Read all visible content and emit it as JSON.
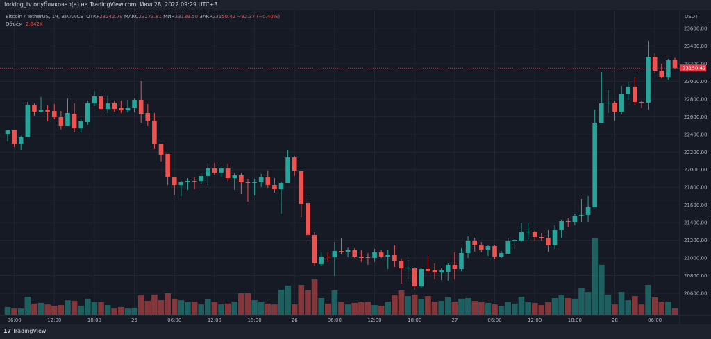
{
  "header": {
    "published": "forklog_tv опубликовал(а) на TradingView.com, Июл 28, 2022 09:29 UTC+3"
  },
  "legend": {
    "symbol": "Bitcoin / TetherUS, 1Ч, BINANCE",
    "open_label": "ОТКР",
    "open": "23242.79",
    "high_label": "МАКС",
    "high": "23273.81",
    "low_label": "МИН",
    "low": "23139.50",
    "close_label": "ЗАКР",
    "close": "23150.42",
    "change": "−92.37 (−0.40%)",
    "volume_label": "Объём",
    "volume": "2.842K"
  },
  "footer": {
    "logo_mark": "17",
    "brand": "TradingView"
  },
  "colors": {
    "up": "#26a69a",
    "down": "#ef5350",
    "background": "#161a25",
    "grid": "#222632",
    "price_label": "#f23645"
  },
  "chart_data": {
    "type": "candlestick",
    "interval": "1H",
    "currency": "USDT",
    "last_price": "23150.42",
    "ylim": [
      20500,
      23700
    ],
    "y_ticks": [
      "23600.00",
      "23400.00",
      "23200.00",
      "23000.00",
      "22800.00",
      "22600.00",
      "22400.00",
      "22200.00",
      "22000.00",
      "21800.00",
      "21600.00",
      "21400.00",
      "21200.00",
      "21000.00",
      "20800.00",
      "20600.00"
    ],
    "time_labels": [
      "06:00",
      "12:00",
      "18:00",
      "25",
      "06:00",
      "12:00",
      "18:00",
      "26",
      "06:00",
      "12:00",
      "18:00",
      "27",
      "06:00",
      "12:00",
      "18:00",
      "28",
      "06:00"
    ],
    "grid": true,
    "ohlc": [
      [
        22398,
        22453,
        22320,
        22446
      ],
      [
        22446,
        22446,
        22257,
        22296
      ],
      [
        22296,
        22383,
        22226,
        22367
      ],
      [
        22367,
        22768,
        22367,
        22736
      ],
      [
        22728,
        22752,
        22611,
        22658
      ],
      [
        22658,
        22823,
        22650,
        22681
      ],
      [
        22681,
        22728,
        22548,
        22658
      ],
      [
        22665,
        22744,
        22571,
        22595
      ],
      [
        22595,
        22665,
        22454,
        22493
      ],
      [
        22493,
        22807,
        22493,
        22642
      ],
      [
        22634,
        22752,
        22422,
        22469
      ],
      [
        22469,
        22579,
        22422,
        22548
      ],
      [
        22540,
        22783,
        22508,
        22752
      ],
      [
        22752,
        22893,
        22720,
        22830
      ],
      [
        22830,
        22862,
        22611,
        22689
      ],
      [
        22689,
        22838,
        22642,
        22752
      ],
      [
        22752,
        22783,
        22658,
        22689
      ],
      [
        22697,
        22783,
        22642,
        22673
      ],
      [
        22673,
        22791,
        22650,
        22697
      ],
      [
        22697,
        22807,
        22650,
        22791
      ],
      [
        22791,
        23003,
        22532,
        22634
      ],
      [
        22642,
        22744,
        22493,
        22556
      ],
      [
        22556,
        22642,
        22234,
        22289
      ],
      [
        22296,
        22296,
        22092,
        22171
      ],
      [
        22179,
        22179,
        21825,
        21919
      ],
      [
        21911,
        21911,
        21715,
        21825
      ],
      [
        21825,
        21872,
        21700,
        21857
      ],
      [
        21857,
        21904,
        21770,
        21872
      ],
      [
        21872,
        21911,
        21778,
        21865
      ],
      [
        21872,
        21967,
        21841,
        21927
      ],
      [
        21927,
        22077,
        21825,
        22014
      ],
      [
        22014,
        22077,
        21943,
        21967
      ],
      [
        21967,
        22045,
        21919,
        22014
      ],
      [
        22014,
        22069,
        21872,
        21904
      ],
      [
        21904,
        21959,
        21770,
        21935
      ],
      [
        21935,
        21967,
        21723,
        21857
      ],
      [
        21857,
        21896,
        21637,
        21849
      ],
      [
        21849,
        21896,
        21707,
        21857
      ],
      [
        21857,
        21951,
        21802,
        21919
      ],
      [
        21911,
        21990,
        21794,
        21825
      ],
      [
        21825,
        21904,
        21739,
        21778
      ],
      [
        21778,
        21865,
        21503,
        21849
      ],
      [
        21849,
        22226,
        21849,
        22139
      ],
      [
        22139,
        22155,
        21927,
        21990
      ],
      [
        21982,
        21982,
        21464,
        21613
      ],
      [
        21621,
        21715,
        21197,
        21260
      ],
      [
        21260,
        21291,
        20914,
        20938
      ],
      [
        20930,
        21064,
        20914,
        21016
      ],
      [
        21016,
        21064,
        20954,
        21009
      ],
      [
        21009,
        21181,
        20796,
        21079
      ],
      [
        21079,
        21220,
        21040,
        21071
      ],
      [
        21071,
        21118,
        21009,
        21087
      ],
      [
        21087,
        21111,
        21001,
        21016
      ],
      [
        21016,
        21087,
        20954,
        21001
      ],
      [
        21009,
        21056,
        20922,
        21001
      ],
      [
        21001,
        21103,
        20954,
        21064
      ],
      [
        21064,
        21095,
        21001,
        21016
      ],
      [
        21016,
        21095,
        20875,
        21032
      ],
      [
        21032,
        21142,
        20899,
        20969
      ],
      [
        20969,
        20993,
        20710,
        20883
      ],
      [
        20883,
        20977,
        20765,
        20891
      ],
      [
        20883,
        20899,
        20639,
        20679
      ],
      [
        20679,
        20883,
        20663,
        20875
      ],
      [
        20875,
        21024,
        20836,
        20852
      ],
      [
        20860,
        20938,
        20757,
        20836
      ],
      [
        20836,
        20883,
        20749,
        20860
      ],
      [
        20844,
        20938,
        20742,
        20922
      ],
      [
        20922,
        21064,
        20757,
        20875
      ],
      [
        20875,
        21111,
        20852,
        21056
      ],
      [
        21056,
        21244,
        21001,
        21197
      ],
      [
        21197,
        21228,
        21071,
        21150
      ],
      [
        21150,
        21181,
        21064,
        21095
      ],
      [
        21095,
        21150,
        21024,
        21134
      ],
      [
        21134,
        21150,
        20985,
        21016
      ],
      [
        21016,
        21079,
        21001,
        21056
      ],
      [
        21048,
        21228,
        21040,
        21189
      ],
      [
        21197,
        21213,
        21103,
        21205
      ],
      [
        21197,
        21401,
        21181,
        21291
      ],
      [
        21291,
        21393,
        21213,
        21299
      ],
      [
        21299,
        21307,
        21197,
        21236
      ],
      [
        21236,
        21283,
        21197,
        21228
      ],
      [
        21228,
        21315,
        21071,
        21142
      ],
      [
        21142,
        21370,
        21103,
        21315
      ],
      [
        21315,
        21433,
        21228,
        21417
      ],
      [
        21417,
        21448,
        21346,
        21409
      ],
      [
        21409,
        21503,
        21370,
        21480
      ],
      [
        21480,
        21668,
        21409,
        21488
      ],
      [
        21488,
        21700,
        21409,
        21574
      ],
      [
        21574,
        22681,
        21574,
        22532
      ],
      [
        22532,
        23105,
        22532,
        22752
      ],
      [
        22752,
        22901,
        22642,
        22760
      ],
      [
        22760,
        22783,
        22556,
        22658
      ],
      [
        22658,
        22948,
        22626,
        22854
      ],
      [
        22854,
        22987,
        22791,
        22940
      ],
      [
        22940,
        23050,
        22736,
        22768
      ],
      [
        22768,
        22783,
        22697,
        22760
      ],
      [
        22760,
        23459,
        22681,
        23278
      ],
      [
        23278,
        23317,
        23090,
        23121
      ],
      [
        23121,
        23200,
        23034,
        23050
      ],
      [
        23050,
        23254,
        23019,
        23239
      ],
      [
        23242.79,
        23273.81,
        23139.5,
        23150.42
      ]
    ],
    "volume_k": [
      3.5,
      2.8,
      2.8,
      8.2,
      5.1,
      5.4,
      4.7,
      4.1,
      4.4,
      6.6,
      6.3,
      4.1,
      7.3,
      5.7,
      5.7,
      4.4,
      2.8,
      3.5,
      2.8,
      3.2,
      8.8,
      6.3,
      9.2,
      6.6,
      9.8,
      7.3,
      6.6,
      5.7,
      6.0,
      4.7,
      7.0,
      5.7,
      4.7,
      5.1,
      6.0,
      9.8,
      9.8,
      6.6,
      6.0,
      5.1,
      4.7,
      11.4,
      13.3,
      4.7,
      13.6,
      11.1,
      16.1,
      7.6,
      5.1,
      11.1,
      6.0,
      4.7,
      5.4,
      5.7,
      6.0,
      4.4,
      4.1,
      6.0,
      8.8,
      11.1,
      8.5,
      9.2,
      7.0,
      8.5,
      6.0,
      6.3,
      7.9,
      6.0,
      7.3,
      7.6,
      6.3,
      5.7,
      5.4,
      4.7,
      4.1,
      5.7,
      5.1,
      8.2,
      5.7,
      5.4,
      4.4,
      5.7,
      7.6,
      8.8,
      7.6,
      7.3,
      12.0,
      10.4,
      34.8,
      22.8,
      9.2,
      4.7,
      10.4,
      6.6,
      8.5,
      4.7,
      13.6,
      7.9,
      5.7,
      6.0,
      2.842
    ]
  }
}
